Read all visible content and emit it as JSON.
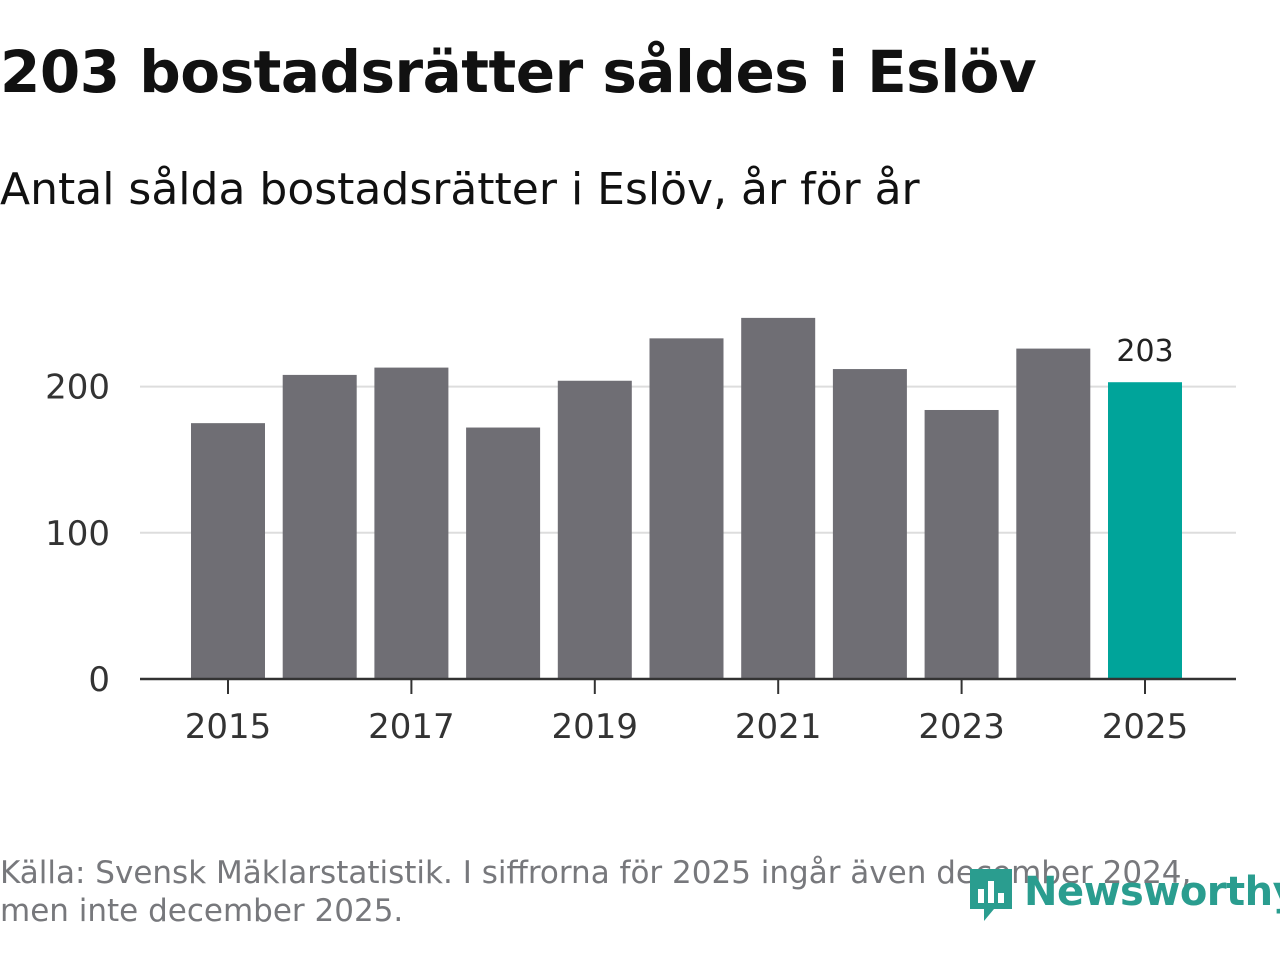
{
  "header": {
    "title": "203 bostadsrätter såldes i Eslöv",
    "subtitle": "Antal sålda bostadsrätter i Eslöv, år för år"
  },
  "chart_data": {
    "type": "bar",
    "title": "203 bostadsrätter såldes i Eslöv",
    "subtitle": "Antal sålda bostadsrätter i Eslöv, år för år",
    "categories": [
      "2015",
      "2016",
      "2017",
      "2018",
      "2019",
      "2020",
      "2021",
      "2022",
      "2023",
      "2024",
      "2025"
    ],
    "values": [
      175,
      208,
      213,
      172,
      204,
      233,
      247,
      212,
      184,
      226,
      203
    ],
    "x_tick_labels": [
      "2015",
      "2017",
      "2019",
      "2021",
      "2023",
      "2025"
    ],
    "y_ticks": [
      0,
      100,
      200
    ],
    "ylim": [
      0,
      265
    ],
    "xlabel": "",
    "ylabel": "",
    "grid": "horizontal",
    "highlight_index": 10,
    "highlight_label": "203",
    "colors": {
      "bar": "#6f6e74",
      "highlight": "#00a49a",
      "grid": "#dddddd",
      "axis": "#333333"
    }
  },
  "footer": {
    "source": "Källa: Svensk Mäklarstatistik. I siffrorna för 2025 ingår även december 2024, men inte december 2025.",
    "logo_text": "Newsworthy",
    "logo_color": "#2a9d8f"
  }
}
